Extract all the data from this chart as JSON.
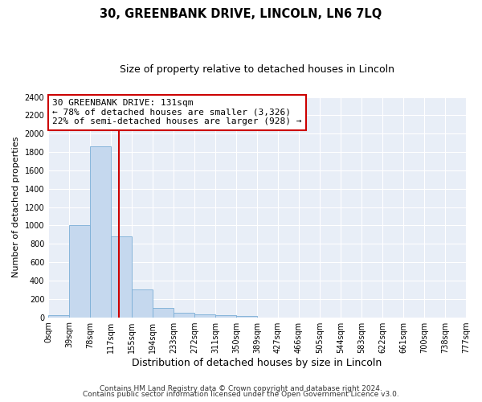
{
  "title": "30, GREENBANK DRIVE, LINCOLN, LN6 7LQ",
  "subtitle": "Size of property relative to detached houses in Lincoln",
  "xlabel": "Distribution of detached houses by size in Lincoln",
  "ylabel": "Number of detached properties",
  "bin_edges": [
    0,
    39,
    78,
    117,
    155,
    194,
    233,
    272,
    311,
    350,
    389,
    427,
    466,
    505,
    544,
    583,
    622,
    661,
    700,
    738,
    777
  ],
  "bin_counts": [
    20,
    1000,
    1860,
    880,
    300,
    100,
    45,
    30,
    20,
    15,
    0,
    0,
    0,
    0,
    0,
    0,
    0,
    0,
    0,
    0
  ],
  "bar_color": "#c5d8ee",
  "bar_edge_color": "#7aaed6",
  "property_line_x": 131,
  "property_line_color": "#cc0000",
  "ylim": [
    0,
    2400
  ],
  "yticks": [
    0,
    200,
    400,
    600,
    800,
    1000,
    1200,
    1400,
    1600,
    1800,
    2000,
    2200,
    2400
  ],
  "annotation_title": "30 GREENBANK DRIVE: 131sqm",
  "annotation_line1": "← 78% of detached houses are smaller (3,326)",
  "annotation_line2": "22% of semi-detached houses are larger (928) →",
  "annotation_box_color": "#ffffff",
  "annotation_box_edge_color": "#cc0000",
  "footer_line1": "Contains HM Land Registry data © Crown copyright and database right 2024.",
  "footer_line2": "Contains public sector information licensed under the Open Government Licence v3.0.",
  "figure_background_color": "#ffffff",
  "plot_background_color": "#e8eef7",
  "grid_color": "#ffffff",
  "title_fontsize": 10.5,
  "subtitle_fontsize": 9,
  "xlabel_fontsize": 9,
  "ylabel_fontsize": 8,
  "tick_label_fontsize": 7,
  "footer_fontsize": 6.5,
  "annotation_title_fontsize": 8.5,
  "annotation_fontsize": 8
}
